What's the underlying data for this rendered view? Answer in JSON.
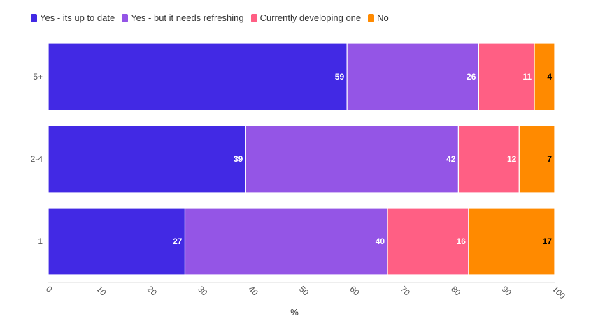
{
  "chart_data": {
    "type": "bar",
    "orientation": "horizontal",
    "stacked": true,
    "categories": [
      "5+",
      "2-4",
      "1"
    ],
    "series": [
      {
        "name": "Yes - its up to date",
        "color": "#4229e4",
        "values": [
          59,
          39,
          27
        ]
      },
      {
        "name": "Yes - but it needs refreshing",
        "color": "#9455e6",
        "values": [
          26,
          42,
          40
        ]
      },
      {
        "name": "Currently developing one",
        "color": "#ff5f84",
        "values": [
          11,
          12,
          16
        ]
      },
      {
        "name": "No",
        "color": "#ff8a00",
        "values": [
          4,
          7,
          17
        ]
      }
    ],
    "value_label_colors": [
      "#ffffff",
      "#ffffff",
      "#ffffff",
      "#000000"
    ],
    "xlabel": "%",
    "xlim": [
      0,
      100
    ],
    "xticks": [
      "0",
      "10",
      "20",
      "30",
      "40",
      "50",
      "60",
      "70",
      "80",
      "90",
      "100"
    ],
    "legend_position": "top-left",
    "grid": false
  }
}
